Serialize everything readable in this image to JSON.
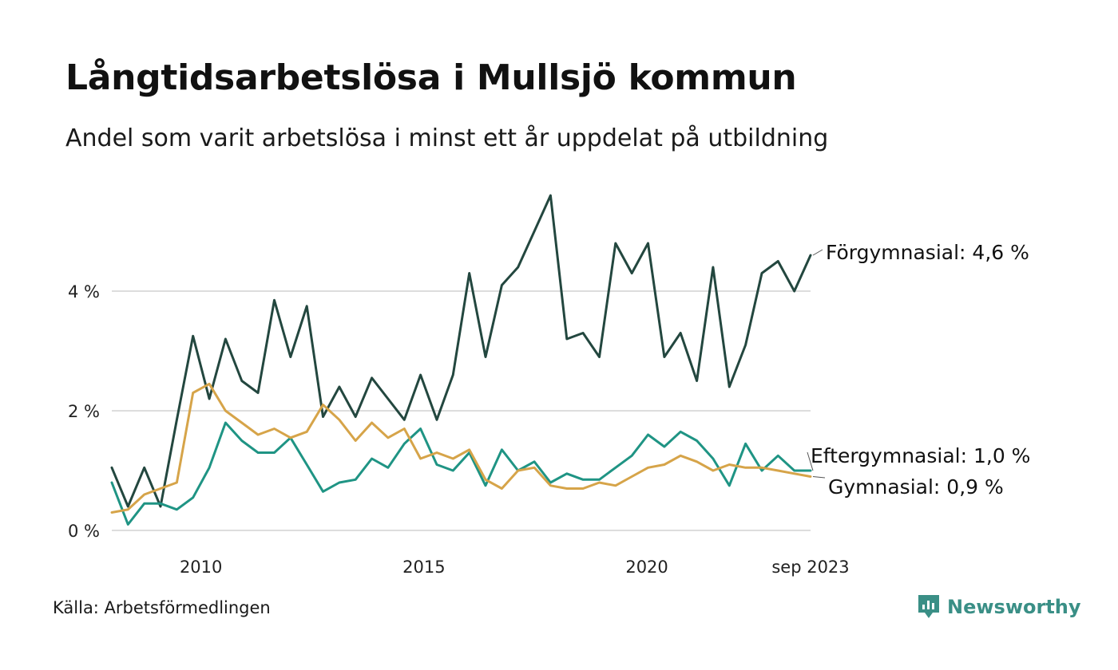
{
  "title": "Långtidsarbetslösa i Mullsjö kommun",
  "subtitle": "Andel som varit arbetslösa i minst ett år uppdelat på utbildning",
  "source": "Källa: Arbetsförmedlingen",
  "brand": {
    "name": "Newsworthy",
    "icon": "bar-chart-logo-icon",
    "color": "#3a8f86"
  },
  "chart_data": {
    "type": "line",
    "ylim": [
      0,
      5.8
    ],
    "xlim": [
      2008.0,
      2023.67
    ],
    "y_ticks": [
      {
        "value": 0,
        "label": "0 %"
      },
      {
        "value": 2,
        "label": "2 %"
      },
      {
        "value": 4,
        "label": "4 %"
      }
    ],
    "x_ticks": [
      {
        "value": 2010,
        "label": "2010"
      },
      {
        "value": 2015,
        "label": "2015"
      },
      {
        "value": 2020,
        "label": "2020"
      },
      {
        "value": 2023.67,
        "label": "sep 2023"
      }
    ],
    "grid": true,
    "series": [
      {
        "name": "Förgymnasial",
        "label": "Förgymnasial: 4,6 %",
        "color": "#23473f",
        "x_start": 2008.0,
        "x_end": 2023.67,
        "values": [
          1.05,
          0.4,
          1.05,
          0.4,
          1.85,
          3.25,
          2.2,
          3.2,
          2.5,
          2.3,
          3.85,
          2.9,
          3.75,
          1.9,
          2.4,
          1.9,
          2.55,
          2.2,
          1.85,
          2.6,
          1.85,
          2.6,
          4.3,
          2.9,
          4.1,
          4.4,
          5.0,
          5.6,
          3.2,
          3.3,
          2.9,
          4.8,
          4.3,
          4.8,
          2.9,
          3.3,
          2.5,
          4.4,
          2.4,
          3.1,
          4.3,
          4.5,
          4.0,
          4.6
        ]
      },
      {
        "name": "Eftergymnasial",
        "label": "Eftergymnasial: 1,0 %",
        "color": "#1f9484",
        "x_start": 2008.0,
        "x_end": 2023.67,
        "values": [
          0.8,
          0.1,
          0.45,
          0.45,
          0.35,
          0.55,
          1.05,
          1.8,
          1.5,
          1.3,
          1.3,
          1.55,
          1.1,
          0.65,
          0.8,
          0.85,
          1.2,
          1.05,
          1.45,
          1.7,
          1.1,
          1.0,
          1.3,
          0.75,
          1.35,
          1.0,
          1.15,
          0.8,
          0.95,
          0.85,
          0.85,
          1.05,
          1.25,
          1.6,
          1.4,
          1.65,
          1.5,
          1.2,
          0.75,
          1.45,
          1.0,
          1.25,
          1.0,
          1.0
        ]
      },
      {
        "name": "Gymnasial",
        "label": "Gymnasial: 0,9 %",
        "color": "#d6a449",
        "x_start": 2008.0,
        "x_end": 2023.67,
        "values": [
          0.3,
          0.35,
          0.6,
          0.7,
          0.8,
          2.3,
          2.45,
          2.0,
          1.8,
          1.6,
          1.7,
          1.55,
          1.65,
          2.1,
          1.85,
          1.5,
          1.8,
          1.55,
          1.7,
          1.2,
          1.3,
          1.2,
          1.35,
          0.85,
          0.7,
          1.0,
          1.05,
          0.75,
          0.7,
          0.7,
          0.8,
          0.75,
          0.9,
          1.05,
          1.1,
          1.25,
          1.15,
          1.0,
          1.1,
          1.05,
          1.05,
          1.0,
          0.95,
          0.9
        ]
      }
    ]
  }
}
